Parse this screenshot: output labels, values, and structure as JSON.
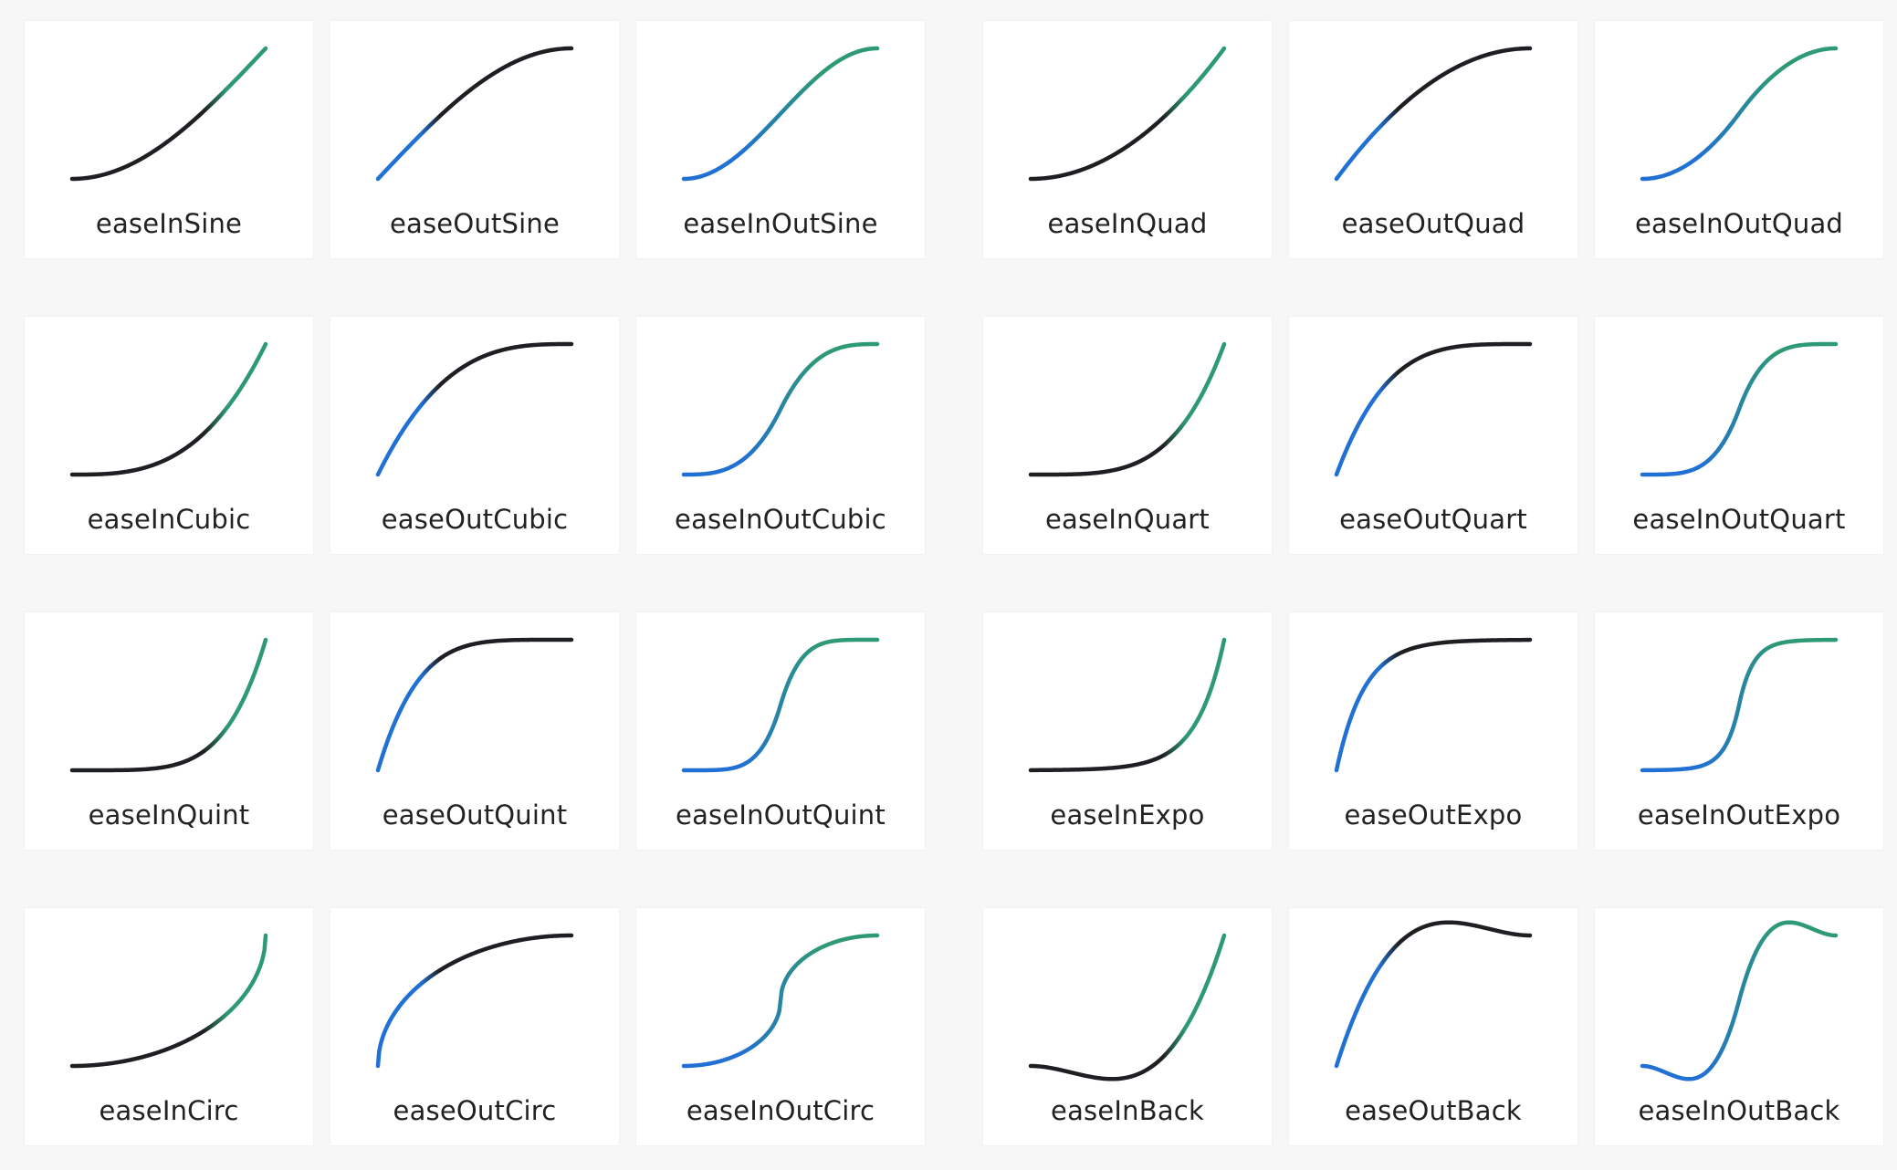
{
  "colors": {
    "dark": "#1e1f22",
    "blue": "#2170d3",
    "green": "#2e9a73",
    "background": "#f7f7f7",
    "card": "#ffffff",
    "text": "#222222"
  },
  "rows": [
    [
      "easeInSine",
      "easeOutSine",
      "easeInOutSine",
      "easeInQuad",
      "easeOutQuad",
      "easeInOutQuad"
    ],
    [
      "easeInCubic",
      "easeOutCubic",
      "easeInOutCubic",
      "easeInQuart",
      "easeOutQuart",
      "easeInOutQuart"
    ],
    [
      "easeInQuint",
      "easeOutQuint",
      "easeInOutQuint",
      "easeInExpo",
      "easeOutExpo",
      "easeInOutExpo"
    ],
    [
      "easeInCirc",
      "easeOutCirc",
      "easeInOutCirc",
      "easeInBack",
      "easeOutBack",
      "easeInOutBack"
    ]
  ]
}
